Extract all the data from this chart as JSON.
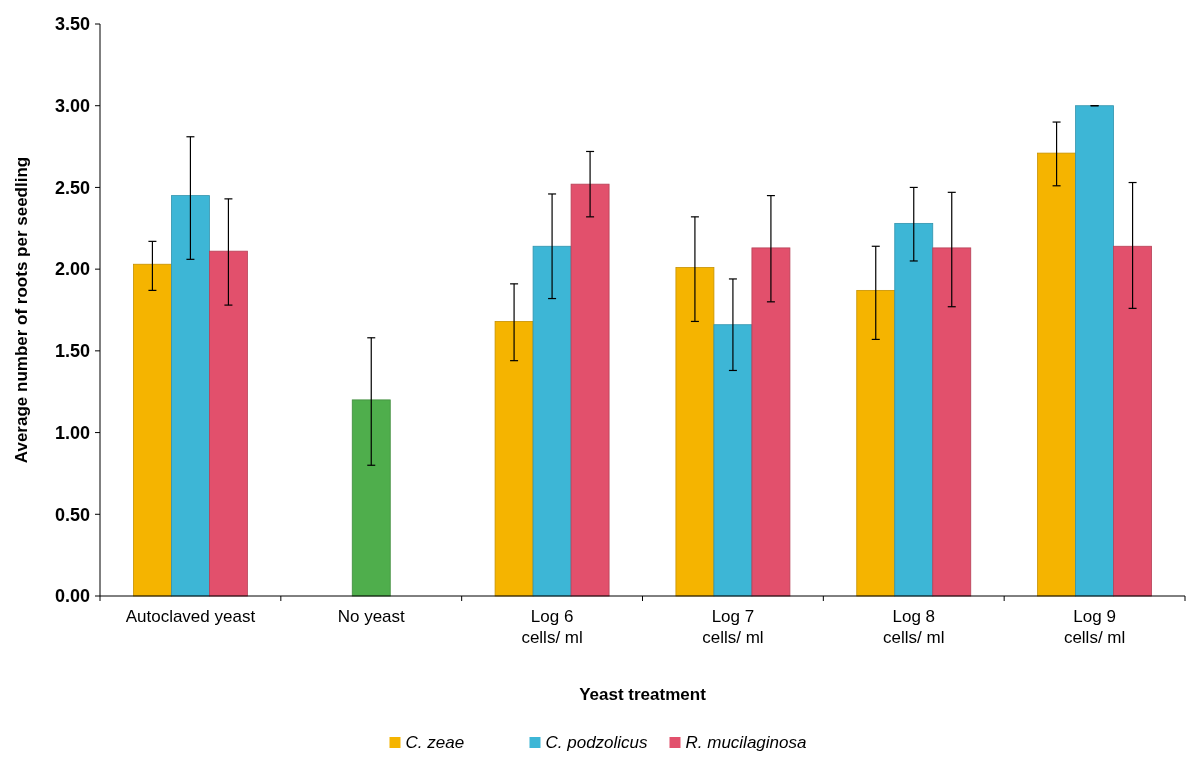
{
  "chart_data": {
    "type": "bar",
    "xlabel": "Yeast treatment",
    "ylabel": "Average number of roots per seedling",
    "categories": [
      "Autoclaved yeast",
      "No yeast",
      "Log 6\ncells/ ml",
      "Log 7\ncells/ ml",
      "Log 8\ncells/ ml",
      "Log 9\ncells/ ml"
    ],
    "series": [
      {
        "name": "C. zeae",
        "color": "#f5b400",
        "values": [
          2.03,
          null,
          1.68,
          2.01,
          1.87,
          2.71
        ],
        "errors": [
          [
            1.87,
            2.17
          ],
          null,
          [
            1.44,
            1.91
          ],
          [
            1.68,
            2.32
          ],
          [
            1.57,
            2.14
          ],
          [
            2.51,
            2.9
          ]
        ]
      },
      {
        "name": "C. podzolicus",
        "color": "#3db6d6",
        "values": [
          2.45,
          null,
          2.14,
          1.66,
          2.28,
          3.0
        ],
        "errors": [
          [
            2.06,
            2.81
          ],
          null,
          [
            1.82,
            2.46
          ],
          [
            1.38,
            1.94
          ],
          [
            2.05,
            2.5
          ],
          [
            3.0,
            3.0
          ]
        ]
      },
      {
        "name": "R. mucilaginosa",
        "color": "#e2506c",
        "values": [
          2.11,
          null,
          2.52,
          2.13,
          2.13,
          2.14
        ],
        "errors": [
          [
            1.78,
            2.43
          ],
          null,
          [
            2.32,
            2.72
          ],
          [
            1.8,
            2.45
          ],
          [
            1.77,
            2.47
          ],
          [
            1.76,
            2.53
          ]
        ]
      },
      {
        "color": "#4fae4c",
        "values": [
          null,
          1.2,
          null,
          null,
          null,
          null
        ],
        "errors": [
          null,
          [
            0.8,
            1.58
          ],
          null,
          null,
          null,
          null
        ]
      }
    ],
    "ylim": [
      0,
      3.5
    ],
    "yticks": [
      {
        "value": 0,
        "label": "0.00"
      },
      {
        "value": 0.5,
        "label": "0.50"
      },
      {
        "value": 1,
        "label": "1.00"
      },
      {
        "value": 1.5,
        "label": "1.50"
      },
      {
        "value": 2,
        "label": "2.00"
      },
      {
        "value": 2.5,
        "label": "2.50"
      },
      {
        "value": 3,
        "label": "3.00"
      },
      {
        "value": 3.5,
        "label": "3.50"
      }
    ],
    "grid": false,
    "legend": "bottom"
  }
}
